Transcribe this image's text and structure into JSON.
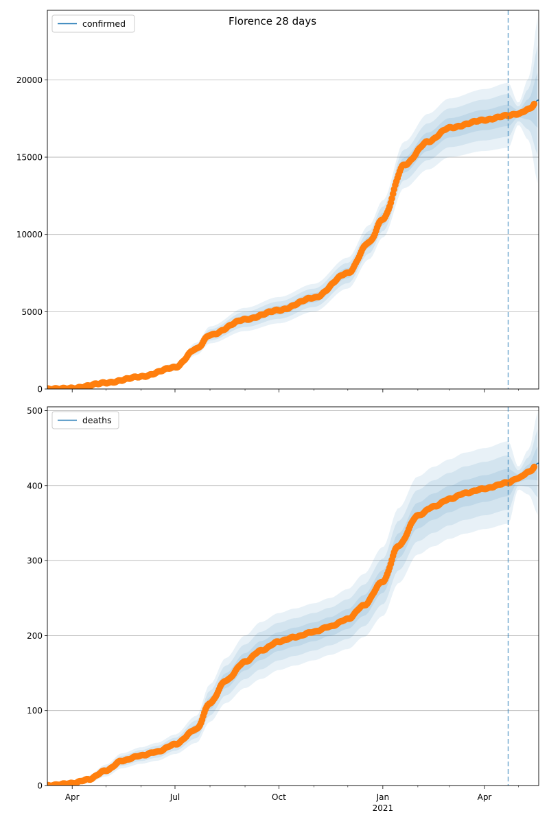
{
  "title": "Florence 28 days",
  "colors": {
    "model_line": "#1f77b4",
    "band": "#1f77b4",
    "observed": "#ff7f0e",
    "vline": "#1f77b4",
    "grid": "#b0b0b0"
  },
  "chart_data": [
    {
      "type": "line",
      "legend": "confirmed",
      "legend_position": "top-left",
      "grid": "horizontal",
      "x_start": "2020-03-10",
      "x_end": "2021-05-19",
      "ylim": [
        0,
        24500
      ],
      "yticks": [
        0,
        5000,
        10000,
        15000,
        20000
      ],
      "forecast_start": "2021-04-22",
      "observed_end": "2021-05-15",
      "model_end": "2021-05-19",
      "anchors": [
        {
          "date": "2020-03-10",
          "value": 0,
          "band": 0
        },
        {
          "date": "2020-04-01",
          "value": 50,
          "band": 30
        },
        {
          "date": "2020-05-01",
          "value": 400,
          "band": 120
        },
        {
          "date": "2020-06-01",
          "value": 800,
          "band": 180
        },
        {
          "date": "2020-07-01",
          "value": 1400,
          "band": 250
        },
        {
          "date": "2020-07-20",
          "value": 2600,
          "band": 400
        },
        {
          "date": "2020-08-01",
          "value": 3500,
          "band": 550
        },
        {
          "date": "2020-09-01",
          "value": 4500,
          "band": 750
        },
        {
          "date": "2020-10-01",
          "value": 5100,
          "band": 850
        },
        {
          "date": "2020-11-01",
          "value": 5900,
          "band": 900
        },
        {
          "date": "2020-12-01",
          "value": 7500,
          "band": 1000
        },
        {
          "date": "2020-12-20",
          "value": 9500,
          "band": 1100
        },
        {
          "date": "2021-01-01",
          "value": 11000,
          "band": 1200
        },
        {
          "date": "2021-01-20",
          "value": 14500,
          "band": 1500
        },
        {
          "date": "2021-02-10",
          "value": 16000,
          "band": 1800
        },
        {
          "date": "2021-03-01",
          "value": 16900,
          "band": 1900
        },
        {
          "date": "2021-04-01",
          "value": 17400,
          "band": 2000
        },
        {
          "date": "2021-04-22",
          "value": 17700,
          "band": 2100
        },
        {
          "date": "2021-05-01",
          "value": 17800,
          "band": 700
        },
        {
          "date": "2021-05-10",
          "value": 18100,
          "band": 2000
        },
        {
          "date": "2021-05-19",
          "value": 18700,
          "band": 5500
        }
      ]
    },
    {
      "type": "line",
      "legend": "deaths",
      "legend_position": "top-left",
      "grid": "horizontal",
      "x_start": "2020-03-10",
      "x_end": "2021-05-19",
      "ylim": [
        0,
        505
      ],
      "yticks": [
        0,
        100,
        200,
        300,
        400,
        500
      ],
      "forecast_start": "2021-04-22",
      "observed_end": "2021-05-15",
      "model_end": "2021-05-19",
      "anchors": [
        {
          "date": "2020-03-10",
          "value": 0,
          "band": 0
        },
        {
          "date": "2020-04-01",
          "value": 3,
          "band": 3
        },
        {
          "date": "2020-04-15",
          "value": 8,
          "band": 5
        },
        {
          "date": "2020-05-01",
          "value": 20,
          "band": 8
        },
        {
          "date": "2020-05-15",
          "value": 33,
          "band": 10
        },
        {
          "date": "2020-06-01",
          "value": 40,
          "band": 11
        },
        {
          "date": "2020-06-15",
          "value": 45,
          "band": 12
        },
        {
          "date": "2020-07-01",
          "value": 55,
          "band": 13
        },
        {
          "date": "2020-07-20",
          "value": 75,
          "band": 18
        },
        {
          "date": "2020-08-01",
          "value": 110,
          "band": 25
        },
        {
          "date": "2020-08-15",
          "value": 140,
          "band": 30
        },
        {
          "date": "2020-09-01",
          "value": 165,
          "band": 35
        },
        {
          "date": "2020-09-15",
          "value": 180,
          "band": 38
        },
        {
          "date": "2020-10-01",
          "value": 192,
          "band": 38
        },
        {
          "date": "2020-10-15",
          "value": 198,
          "band": 38
        },
        {
          "date": "2020-11-01",
          "value": 205,
          "band": 38
        },
        {
          "date": "2020-11-15",
          "value": 212,
          "band": 38
        },
        {
          "date": "2020-12-01",
          "value": 222,
          "band": 40
        },
        {
          "date": "2020-12-15",
          "value": 240,
          "band": 42
        },
        {
          "date": "2021-01-01",
          "value": 272,
          "band": 46
        },
        {
          "date": "2021-01-15",
          "value": 320,
          "band": 50
        },
        {
          "date": "2021-02-01",
          "value": 360,
          "band": 52
        },
        {
          "date": "2021-02-15",
          "value": 372,
          "band": 53
        },
        {
          "date": "2021-03-01",
          "value": 382,
          "band": 53
        },
        {
          "date": "2021-03-15",
          "value": 390,
          "band": 54
        },
        {
          "date": "2021-04-01",
          "value": 396,
          "band": 54
        },
        {
          "date": "2021-04-22",
          "value": 404,
          "band": 55
        },
        {
          "date": "2021-05-01",
          "value": 410,
          "band": 15
        },
        {
          "date": "2021-05-10",
          "value": 418,
          "band": 30
        },
        {
          "date": "2021-05-19",
          "value": 430,
          "band": 70
        }
      ]
    }
  ],
  "x_ticks": [
    {
      "date": "2020-04-01",
      "label": "Apr",
      "sub": ""
    },
    {
      "date": "2020-07-01",
      "label": "Jul",
      "sub": ""
    },
    {
      "date": "2020-10-01",
      "label": "Oct",
      "sub": ""
    },
    {
      "date": "2021-01-01",
      "label": "Jan",
      "sub": "2021"
    },
    {
      "date": "2021-04-01",
      "label": "Apr",
      "sub": ""
    }
  ],
  "x_minor_ticks": [
    "2020-05-01",
    "2020-06-01",
    "2020-08-01",
    "2020-09-01",
    "2020-11-01",
    "2020-12-01",
    "2021-02-01",
    "2021-03-01",
    "2021-05-01"
  ]
}
